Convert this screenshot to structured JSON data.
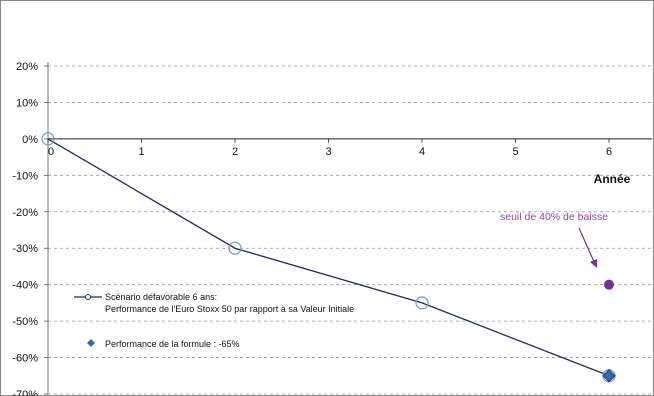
{
  "chart_data": {
    "type": "line",
    "title": "",
    "xlabel": "Année",
    "ylabel": "",
    "xlim": [
      0,
      6.45
    ],
    "ylim": [
      -70,
      20
    ],
    "x_ticks": [
      0,
      1,
      2,
      3,
      4,
      5,
      6
    ],
    "y_ticks": [
      20,
      10,
      0,
      -10,
      -20,
      -30,
      -40,
      -50,
      -60,
      -70
    ],
    "y_tick_suffix": "%",
    "grid": "horizontal-dashed",
    "series": [
      {
        "name_line1": "Scénario défavorable 6 ans:",
        "name_line2": "Performance de l'Euro Stoxx 50 par rapport à sa Valeur Initiale",
        "x": [
          0,
          2,
          4,
          6
        ],
        "y": [
          0,
          -30,
          -45,
          -65
        ],
        "color": "#1f2a6b"
      },
      {
        "name": "Performance de la formule : -65%",
        "x": [
          6
        ],
        "y": [
          -65
        ],
        "color": "#2e6db3",
        "marker": "diamond"
      }
    ],
    "threshold_marker": {
      "x": 6,
      "y": -40,
      "color": "#7030a0"
    },
    "annotations": [
      {
        "text": "seuil de 40% de baisse",
        "color": "#a0409a"
      }
    ],
    "legend_position": "bottom-left"
  }
}
